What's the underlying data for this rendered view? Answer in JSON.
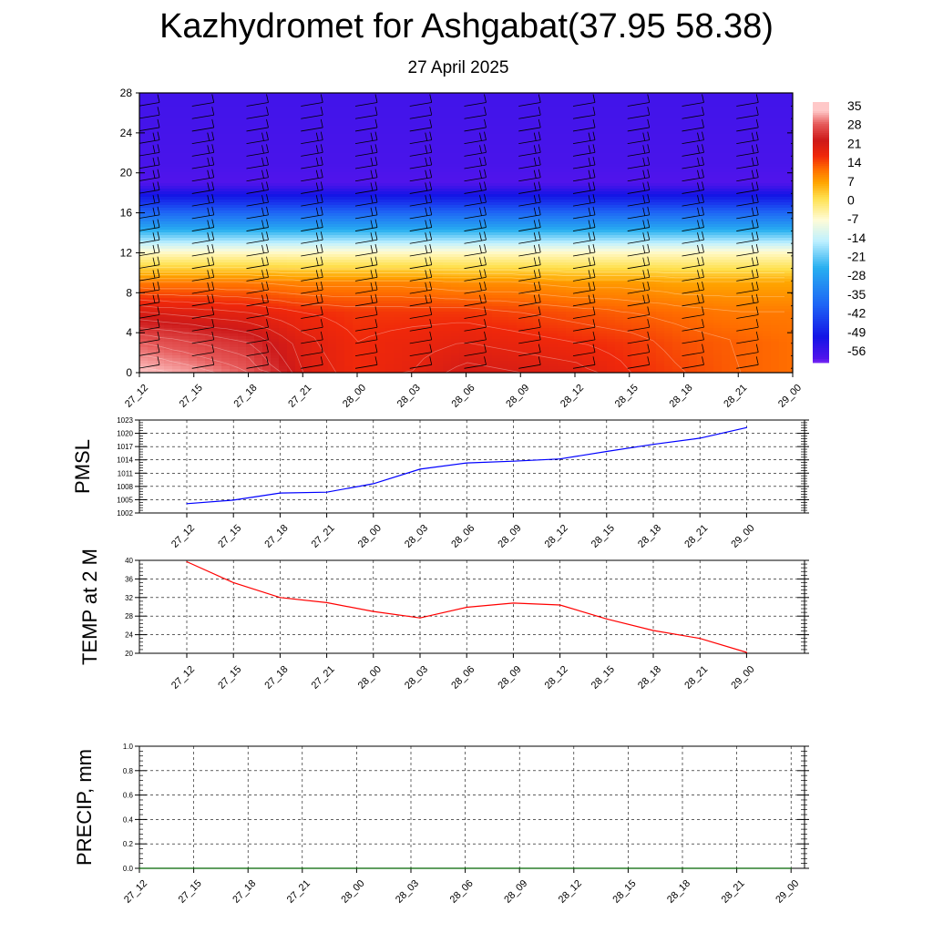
{
  "title": "Kazhydromet for Ashgabat(37.95 58.38)",
  "subtitle": "27 April 2025",
  "chart_data": [
    {
      "type": "heatmap",
      "name": "temperature-wind-cross-section",
      "ylabel": "",
      "yticks": [
        "0",
        "4",
        "8",
        "12",
        "16",
        "20",
        "24",
        "28"
      ],
      "ylim": [
        0,
        28
      ],
      "xticks": [
        "27_12",
        "27_15",
        "27_18",
        "27_21",
        "28_00",
        "28_03",
        "28_06",
        "28_09",
        "28_12",
        "28_15",
        "28_18",
        "28_21",
        "29_00"
      ],
      "colorbar_labels": [
        "35",
        "28",
        "21",
        "14",
        "7",
        "0",
        "-7",
        "-14",
        "-21",
        "-28",
        "-35",
        "-42",
        "-49",
        "-56"
      ],
      "colormap": [
        "#ffc8c8",
        "#d42020",
        "#ff4500",
        "#ff9a00",
        "#ffe060",
        "#fffbe0",
        "#9fe6ff",
        "#2ab4f0",
        "#1e64f0",
        "#1010e0",
        "#7b30f0",
        "#7e2bf5"
      ],
      "levels_height": [
        {
          "height": 0,
          "temps": [
            35,
            33,
            30,
            22,
            18,
            20,
            23,
            22,
            21,
            18,
            16,
            14,
            13
          ]
        },
        {
          "height": 3,
          "temps": [
            30,
            28,
            26,
            21,
            18,
            19,
            20,
            19,
            18,
            17,
            15,
            14,
            13
          ]
        },
        {
          "height": 6,
          "temps": [
            22,
            21,
            20,
            18,
            17,
            17,
            17,
            16,
            15,
            14,
            13,
            12,
            12
          ]
        },
        {
          "height": 9,
          "temps": [
            12,
            12,
            12,
            11,
            11,
            11,
            10,
            10,
            9,
            9,
            8,
            8,
            8
          ]
        },
        {
          "height": 12,
          "temps": [
            -5,
            -5,
            -5,
            -5,
            -5,
            -5,
            -5,
            -5,
            -5,
            -5,
            -5,
            -5,
            -5
          ]
        },
        {
          "height": 13,
          "temps": [
            -14,
            -14,
            -14,
            -14,
            -14,
            -14,
            -14,
            -14,
            -14,
            -14,
            -14,
            -14,
            -14
          ]
        },
        {
          "height": 15,
          "temps": [
            -30,
            -30,
            -30,
            -30,
            -30,
            -30,
            -30,
            -30,
            -30,
            -30,
            -30,
            -30,
            -30
          ]
        },
        {
          "height": 17,
          "temps": [
            -45,
            -45,
            -45,
            -45,
            -45,
            -45,
            -45,
            -45,
            -45,
            -45,
            -45,
            -45,
            -45
          ]
        },
        {
          "height": 19,
          "temps": [
            -58,
            -58,
            -58,
            -58,
            -58,
            -58,
            -58,
            -58,
            -58,
            -58,
            -58,
            -58,
            -58
          ]
        },
        {
          "height": 21,
          "temps": [
            -57,
            -57,
            -57,
            -57,
            -57,
            -57,
            -57,
            -57,
            -57,
            -57,
            -57,
            -57,
            -57
          ]
        },
        {
          "height": 28,
          "temps": [
            -56,
            -56,
            -56,
            -56,
            -56,
            -56,
            -56,
            -56,
            -56,
            -56,
            -56,
            -56,
            -56
          ]
        }
      ],
      "wind_barbs": true
    },
    {
      "type": "line",
      "name": "pmsl",
      "ylabel": "PMSL",
      "ylim": [
        1002,
        1023
      ],
      "yticks": [
        "1002",
        "1005",
        "1008",
        "1011",
        "1014",
        "1017",
        "1020",
        "1023"
      ],
      "categories": [
        "27_12",
        "27_15",
        "27_18",
        "27_21",
        "28_00",
        "28_03",
        "28_06",
        "28_09",
        "28_12",
        "28_15",
        "28_18",
        "28_21",
        "29_00"
      ],
      "values": [
        1004.1,
        1004.9,
        1006.5,
        1006.7,
        1008.6,
        1011.9,
        1013.3,
        1013.7,
        1014.2,
        1015.9,
        1017.5,
        1018.9,
        1021.3
      ],
      "color": "#0000ff",
      "grid": true
    },
    {
      "type": "line",
      "name": "temp-2m",
      "ylabel": "TEMP at 2 M",
      "ylim": [
        20,
        40
      ],
      "yticks": [
        "20",
        "24",
        "28",
        "32",
        "36",
        "40"
      ],
      "categories": [
        "27_12",
        "27_15",
        "27_18",
        "27_21",
        "28_00",
        "28_03",
        "28_06",
        "28_09",
        "28_12",
        "28_15",
        "28_18",
        "28_21",
        "29_00"
      ],
      "values": [
        39.7,
        35.2,
        32.0,
        30.9,
        29.0,
        27.6,
        29.9,
        30.8,
        30.4,
        27.4,
        24.9,
        23.2,
        20.2
      ],
      "color": "#ff0000",
      "grid": true
    },
    {
      "type": "line",
      "name": "precip",
      "ylabel": "PRECIP, mm",
      "ylim": [
        0,
        1
      ],
      "yticks": [
        "0.0",
        "0.2",
        "0.4",
        "0.6",
        "0.8",
        "1.0"
      ],
      "categories": [
        "27_12",
        "27_15",
        "27_18",
        "27_21",
        "28_00",
        "28_03",
        "28_06",
        "28_09",
        "28_12",
        "28_15",
        "28_18",
        "28_21",
        "29_00"
      ],
      "values": [
        0,
        0,
        0,
        0,
        0,
        0,
        0,
        0,
        0,
        0,
        0,
        0,
        0
      ],
      "color": "#006400",
      "grid": true
    }
  ]
}
